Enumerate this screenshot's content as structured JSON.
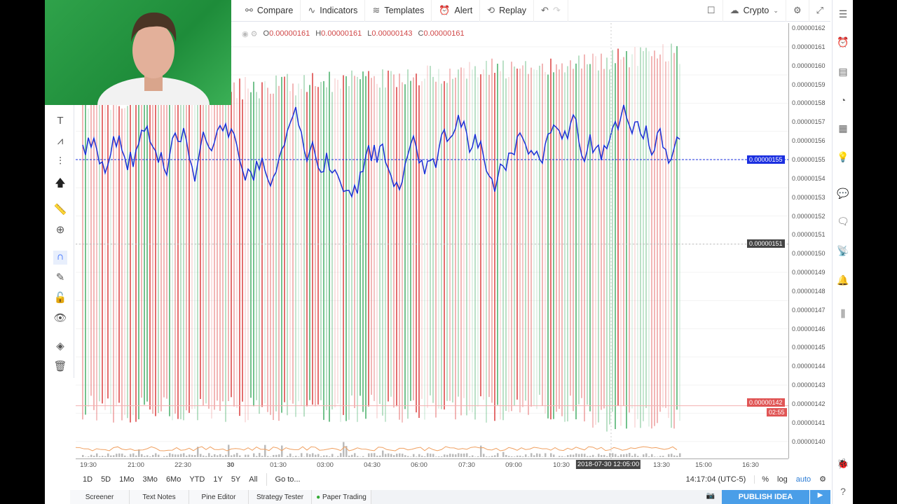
{
  "toolbar": {
    "compare": "Compare",
    "indicators": "Indicators",
    "templates": "Templates",
    "alert": "Alert",
    "replay": "Replay",
    "crypto": "Crypto"
  },
  "legend": {
    "o_label": "O",
    "o": "0.00000161",
    "h_label": "H",
    "h": "0.00000161",
    "l_label": "L",
    "l": "0.00000143",
    "c_label": "C",
    "c": "0.00000161"
  },
  "price_axis": {
    "labels": [
      "0.00000162",
      "0.00000161",
      "0.00000160",
      "0.00000159",
      "0.00000158",
      "0.00000157",
      "0.00000156",
      "0.00000155",
      "0.00000154",
      "0.00000153",
      "0.00000152",
      "0.00000151",
      "0.00000150",
      "0.00000149",
      "0.00000148",
      "0.00000147",
      "0.00000146",
      "0.00000145",
      "0.00000144",
      "0.00000143",
      "0.00000142",
      "0.00000141",
      "0.00000140"
    ],
    "line_badge": "0.00000155",
    "cursor_badge": "0.00000151",
    "last_badge": "0.00000142",
    "countdown": "02:55"
  },
  "time_axis": {
    "labels": [
      "19:30",
      "21:00",
      "22:30",
      "30",
      "01:30",
      "03:00",
      "04:30",
      "06:00",
      "07:30",
      "09:00",
      "10:30",
      "2018-07-30 12:05:00",
      "13:30",
      "15:00",
      "16:30"
    ]
  },
  "range": {
    "items": [
      "1D",
      "5D",
      "1Mo",
      "3Mo",
      "6Mo",
      "YTD",
      "1Y",
      "5Y",
      "All"
    ],
    "goto": "Go to...",
    "clock": "14:17:04 (UTC-5)",
    "percent": "%",
    "log": "log",
    "auto": "auto"
  },
  "bottom_tabs": [
    "Screener",
    "Text Notes",
    "Pine Editor",
    "Strategy Tester",
    "Paper Trading"
  ],
  "publish": "PUBLISH IDEA",
  "colors": {
    "up": "#5cb87a",
    "down": "#e05555",
    "line": "#1a2fd6",
    "accent": "#4a9ee8"
  }
}
